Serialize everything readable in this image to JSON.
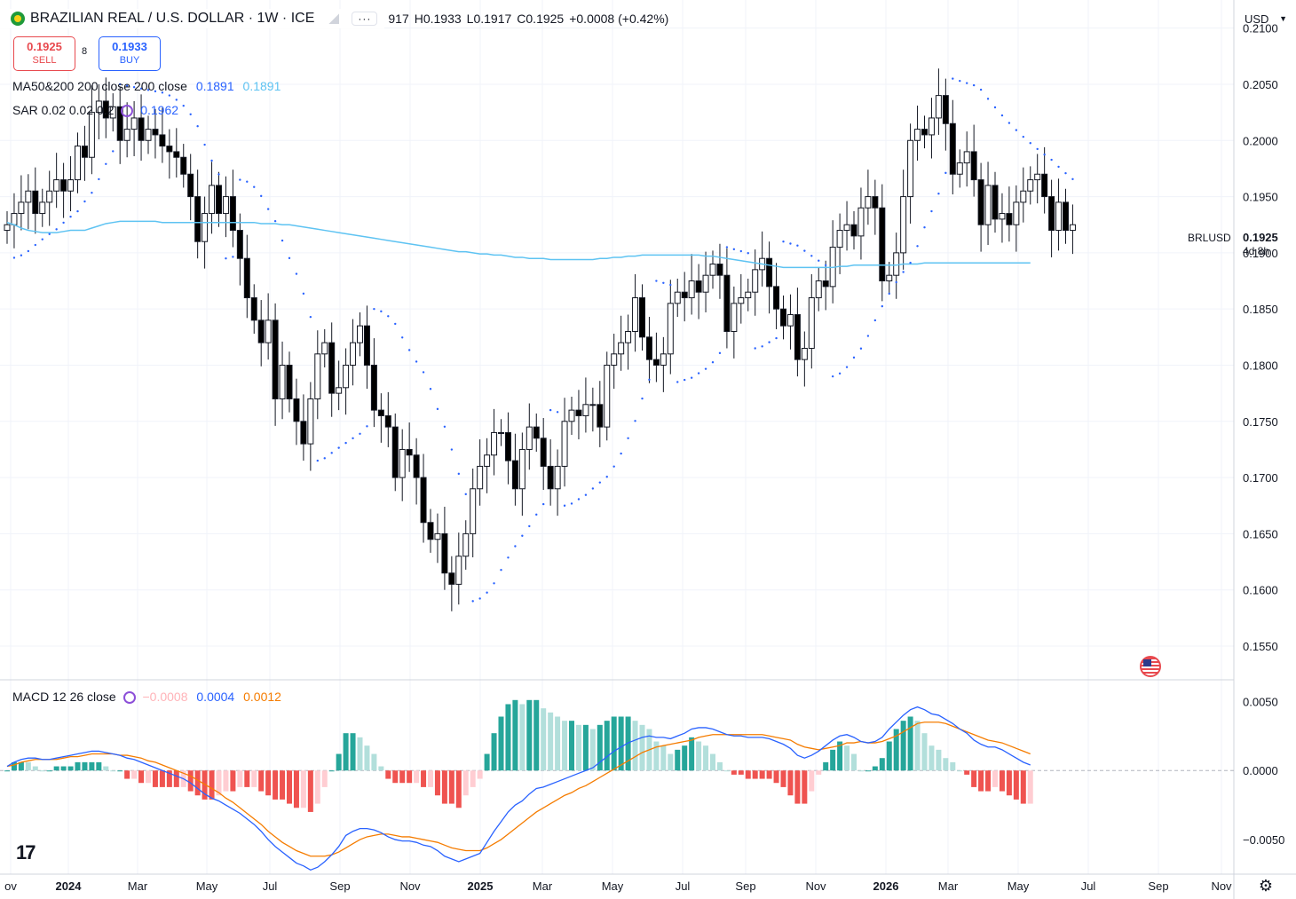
{
  "header": {
    "title": "BRAZILIAN REAL / U.S. DOLLAR · 1W · ICE",
    "menu_dots": "···",
    "open_label": "917",
    "high_label": "H0.1933",
    "low_label": "L0.1917",
    "close_label": "C0.1925",
    "change_label": "+0.0008 (+0.42%)"
  },
  "trade": {
    "sell_price": "0.1925",
    "sell_label": "SELL",
    "spread": "8",
    "buy_price": "0.1933",
    "buy_label": "BUY"
  },
  "indicators": {
    "ma_label": "MA50&200 200 close 200 close",
    "ma_value1": "0.1891",
    "ma_value2": "0.1891",
    "sar_label": "SAR 0.02 0.02 0.2",
    "sar_value": "0.1962",
    "macd_label": "MACD 12 26 close",
    "macd_hist": "−0.0008",
    "macd_line": "0.0004",
    "macd_signal": "0.0012"
  },
  "currency": "USD",
  "symbol_tag": "BRLUSD",
  "last_price": "0.1925",
  "countdown": "4d 8h",
  "colors": {
    "up": "#131722",
    "down": "#000000",
    "ma": "#5ec3f2",
    "sar": "#2962ff",
    "macd": "#2962ff",
    "signal": "#f57c00",
    "hist_pos": "#26a69a",
    "hist_pos_light": "#b2dfdb",
    "hist_neg": "#ef5350",
    "hist_neg_light": "#ffcdd2"
  },
  "chart_data": {
    "type": "candlestick",
    "yaxis_ticks": [
      "0.2100",
      "0.2050",
      "0.2000",
      "0.1950",
      "0.1900",
      "0.1850",
      "0.1800",
      "0.1750",
      "0.1700",
      "0.1650",
      "0.1600",
      "0.1550"
    ],
    "ylim": [
      0.152,
      0.2125
    ],
    "macd_ticks": [
      "0.0050",
      "0.0000",
      "−0.0050"
    ],
    "macd_ylim": [
      -0.0075,
      0.0065
    ],
    "xaxis_ticks": [
      "ov",
      "2024",
      "Mar",
      "May",
      "Jul",
      "Sep",
      "Nov",
      "2025",
      "Mar",
      "May",
      "Jul",
      "Sep",
      "Nov",
      "2026",
      "Mar",
      "May",
      "Jul",
      "Sep",
      "Nov"
    ],
    "close": [
      0.1925,
      0.1935,
      0.1945,
      0.1955,
      0.1935,
      0.1945,
      0.1955,
      0.1965,
      0.1955,
      0.1965,
      0.1995,
      0.1985,
      0.2025,
      0.2035,
      0.202,
      0.203,
      0.2,
      0.201,
      0.202,
      0.2,
      0.201,
      0.2005,
      0.1995,
      0.199,
      0.1985,
      0.197,
      0.195,
      0.191,
      0.1935,
      0.196,
      0.1935,
      0.195,
      0.192,
      0.1895,
      0.186,
      0.184,
      0.182,
      0.184,
      0.177,
      0.18,
      0.177,
      0.175,
      0.173,
      0.177,
      0.181,
      0.182,
      0.1775,
      0.178,
      0.18,
      0.182,
      0.1835,
      0.18,
      0.176,
      0.1755,
      0.1745,
      0.17,
      0.1725,
      0.172,
      0.17,
      0.166,
      0.1645,
      0.165,
      0.1615,
      0.1605,
      0.163,
      0.165,
      0.169,
      0.171,
      0.172,
      0.174,
      0.174,
      0.1715,
      0.169,
      0.1725,
      0.1745,
      0.1735,
      0.171,
      0.169,
      0.171,
      0.175,
      0.176,
      0.1755,
      0.1765,
      0.1765,
      0.1745,
      0.18,
      0.181,
      0.182,
      0.183,
      0.186,
      0.1825,
      0.1805,
      0.18,
      0.181,
      0.1855,
      0.1865,
      0.186,
      0.1875,
      0.1865,
      0.188,
      0.189,
      0.188,
      0.183,
      0.1855,
      0.186,
      0.1865,
      0.1885,
      0.1895,
      0.187,
      0.185,
      0.1835,
      0.1845,
      0.1805,
      0.1815,
      0.186,
      0.1875,
      0.187,
      0.1905,
      0.192,
      0.1925,
      0.1915,
      0.194,
      0.195,
      0.194,
      0.1875,
      0.188,
      0.19,
      0.195,
      0.2,
      0.201,
      0.2005,
      0.202,
      0.204,
      0.2015,
      0.197,
      0.198,
      0.199,
      0.1965,
      0.1925,
      0.196,
      0.193,
      0.1935,
      0.1925,
      0.1945,
      0.1955,
      0.1965,
      0.197,
      0.195,
      0.192,
      0.1945,
      0.192,
      0.1925
    ],
    "ma200": [
      0.1927,
      0.1925,
      0.1922,
      0.192,
      0.1919,
      0.1918,
      0.1918,
      0.1918,
      0.1919,
      0.192,
      0.192,
      0.192,
      0.1922,
      0.1924,
      0.1926,
      0.1927,
      0.1928,
      0.1928,
      0.1928,
      0.1928,
      0.1928,
      0.1928,
      0.1927,
      0.1927,
      0.1927,
      0.1927,
      0.1927,
      0.1927,
      0.1927,
      0.1927,
      0.1927,
      0.1927,
      0.1927,
      0.1927,
      0.1927,
      0.1927,
      0.1926,
      0.1926,
      0.1926,
      0.1925,
      0.1925,
      0.1924,
      0.1923,
      0.1922,
      0.1921,
      0.192,
      0.1919,
      0.1918,
      0.1917,
      0.1916,
      0.1915,
      0.1914,
      0.1913,
      0.1912,
      0.1911,
      0.191,
      0.1909,
      0.1908,
      0.1907,
      0.1906,
      0.1905,
      0.1904,
      0.1903,
      0.1902,
      0.1901,
      0.1901,
      0.19,
      0.1899,
      0.1899,
      0.1898,
      0.1898,
      0.1897,
      0.1896,
      0.1896,
      0.1895,
      0.1895,
      0.1895,
      0.1894,
      0.1894,
      0.1894,
      0.1894,
      0.1894,
      0.1894,
      0.1894,
      0.1895,
      0.1895,
      0.1896,
      0.1896,
      0.1897,
      0.1897,
      0.1898,
      0.1898,
      0.1898,
      0.1898,
      0.1898,
      0.1898,
      0.1898,
      0.1898,
      0.1898,
      0.1897,
      0.1897,
      0.1896,
      0.1895,
      0.1894,
      0.1893,
      0.1892,
      0.1891,
      0.189,
      0.1889,
      0.1888,
      0.1887,
      0.1887,
      0.1887,
      0.1887,
      0.1887,
      0.1887,
      0.1887,
      0.1887,
      0.1888,
      0.1888,
      0.1889,
      0.1889,
      0.1889,
      0.1889,
      0.1889,
      0.1889,
      0.1889,
      0.189,
      0.189,
      0.189,
      0.1891,
      0.1891,
      0.1891,
      0.1891,
      0.1891,
      0.1891,
      0.1891,
      0.1891,
      0.1891,
      0.1891,
      0.1891,
      0.1891,
      0.1891,
      0.1891,
      0.1891,
      0.1891
    ],
    "macd_line": [
      0.0003,
      0.0006,
      0.0008,
      0.0009,
      0.0009,
      0.0008,
      0.0008,
      0.0009,
      0.001,
      0.0011,
      0.0012,
      0.0013,
      0.0014,
      0.0014,
      0.0013,
      0.0012,
      0.0011,
      0.0009,
      0.0008,
      0.0006,
      0.0004,
      0.0002,
      0.0,
      -0.0002,
      -0.0004,
      -0.0006,
      -0.0009,
      -0.0013,
      -0.0017,
      -0.002,
      -0.0022,
      -0.0025,
      -0.0028,
      -0.0031,
      -0.0035,
      -0.0039,
      -0.0044,
      -0.005,
      -0.0055,
      -0.0059,
      -0.0063,
      -0.0067,
      -0.0069,
      -0.0072,
      -0.007,
      -0.0066,
      -0.0061,
      -0.0055,
      -0.0047,
      -0.0044,
      -0.0042,
      -0.0042,
      -0.0043,
      -0.0045,
      -0.0048,
      -0.005,
      -0.0051,
      -0.0051,
      -0.0052,
      -0.0054,
      -0.0055,
      -0.0058,
      -0.0062,
      -0.0064,
      -0.0066,
      -0.0064,
      -0.0062,
      -0.006,
      -0.0052,
      -0.0044,
      -0.0037,
      -0.003,
      -0.0025,
      -0.0022,
      -0.0017,
      -0.0013,
      -0.0012,
      -0.001,
      -0.0008,
      -0.0006,
      -0.0004,
      -0.0002,
      0.0,
      0.0002,
      0.0006,
      0.001,
      0.0014,
      0.0017,
      0.002,
      0.0022,
      0.0024,
      0.0025,
      0.0024,
      0.0024,
      0.0023,
      0.0025,
      0.0027,
      0.003,
      0.0031,
      0.0031,
      0.003,
      0.0028,
      0.0026,
      0.0025,
      0.0025,
      0.0024,
      0.0024,
      0.0024,
      0.0023,
      0.0021,
      0.0019,
      0.0016,
      0.0011,
      0.0009,
      0.0011,
      0.0014,
      0.0018,
      0.0022,
      0.0025,
      0.0026,
      0.0024,
      0.0021,
      0.002,
      0.0021,
      0.0024,
      0.003,
      0.0035,
      0.004,
      0.0044,
      0.0046,
      0.0044,
      0.0041,
      0.004,
      0.0037,
      0.0034,
      0.003,
      0.0027,
      0.0022,
      0.0019,
      0.0017,
      0.0017,
      0.0015,
      0.0012,
      0.0009,
      0.0006,
      0.0004
    ],
    "macd_signal": [
      0.0003,
      0.0004,
      0.0006,
      0.0007,
      0.0008,
      0.0008,
      0.0008,
      0.0008,
      0.0009,
      0.001,
      0.001,
      0.0011,
      0.0012,
      0.0012,
      0.0012,
      0.0012,
      0.0011,
      0.0011,
      0.001,
      0.0009,
      0.0007,
      0.0006,
      0.0004,
      0.0002,
      0.0,
      -0.0002,
      -0.0004,
      -0.0007,
      -0.001,
      -0.0013,
      -0.0016,
      -0.002,
      -0.0023,
      -0.0027,
      -0.0031,
      -0.0035,
      -0.0039,
      -0.0044,
      -0.0048,
      -0.0052,
      -0.0055,
      -0.0058,
      -0.006,
      -0.0062,
      -0.0062,
      -0.0062,
      -0.0061,
      -0.0059,
      -0.0056,
      -0.0053,
      -0.005,
      -0.0048,
      -0.0047,
      -0.0046,
      -0.0046,
      -0.0047,
      -0.0048,
      -0.0048,
      -0.0049,
      -0.005,
      -0.0051,
      -0.0052,
      -0.0054,
      -0.0056,
      -0.0057,
      -0.0058,
      -0.0058,
      -0.0058,
      -0.0056,
      -0.0053,
      -0.005,
      -0.0046,
      -0.0042,
      -0.0038,
      -0.0034,
      -0.003,
      -0.0027,
      -0.0024,
      -0.0021,
      -0.0018,
      -0.0016,
      -0.0013,
      -0.0011,
      -0.0008,
      -0.0005,
      -0.0002,
      0.0001,
      0.0004,
      0.0007,
      0.001,
      0.0013,
      0.0015,
      0.0017,
      0.0018,
      0.0019,
      0.002,
      0.0021,
      0.0022,
      0.0024,
      0.0025,
      0.0026,
      0.0026,
      0.0026,
      0.0026,
      0.0026,
      0.0026,
      0.0026,
      0.0026,
      0.0025,
      0.0024,
      0.0023,
      0.0022,
      0.0019,
      0.0017,
      0.0016,
      0.0015,
      0.0016,
      0.0017,
      0.0018,
      0.002,
      0.002,
      0.0021,
      0.002,
      0.002,
      0.0021,
      0.0023,
      0.0025,
      0.0028,
      0.0031,
      0.0034,
      0.0035,
      0.0035,
      0.0035,
      0.0034,
      0.0032,
      0.003,
      0.0028,
      0.0026,
      0.0024,
      0.0022,
      0.0021,
      0.002,
      0.0018,
      0.0016,
      0.0014,
      0.0012
    ]
  }
}
